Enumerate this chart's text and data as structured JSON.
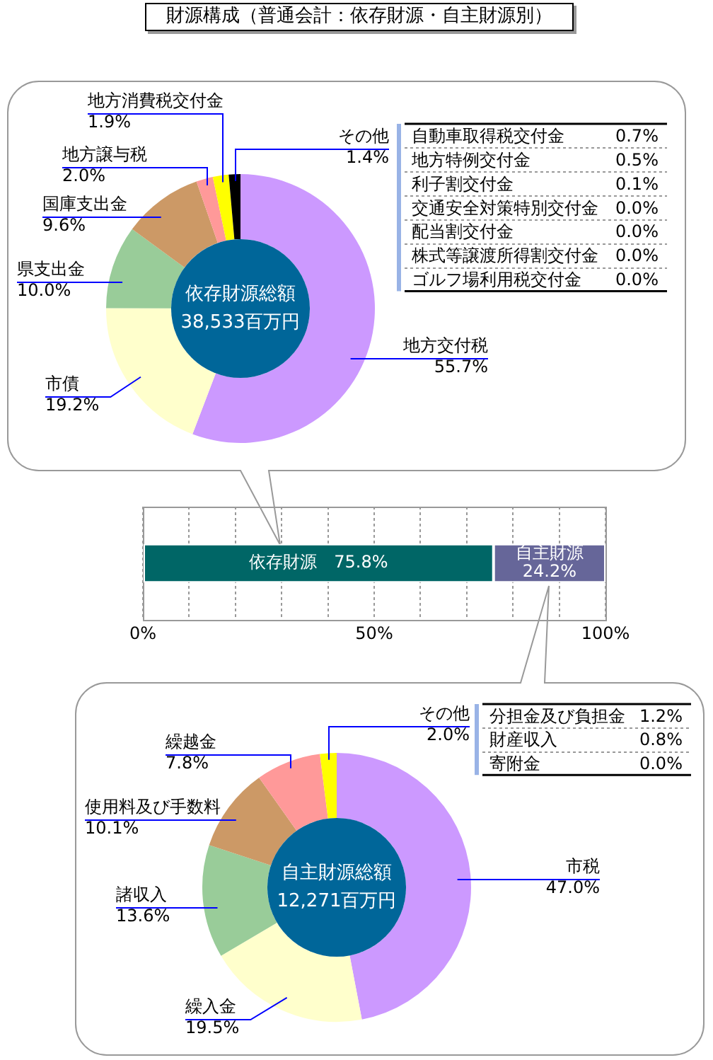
{
  "chart_data": [
    {
      "type": "donut",
      "title": "財源構成（普通会計：依存財源・自主財源別）",
      "categories": [
        "地方交付税",
        "市債",
        "県支出金",
        "国庫支出金",
        "地方譲与税",
        "地方消費税交付金",
        "その他"
      ],
      "values": [
        55.7,
        19.2,
        10.0,
        9.6,
        2.0,
        1.9,
        1.4
      ],
      "colors": [
        "#cc99ff",
        "#ffffcc",
        "#99cc99",
        "#cc9966",
        "#ff9999",
        "#ffff00",
        "#000000"
      ],
      "value_labels": [
        "55.7%",
        "19.2%",
        "10.0%",
        "9.6%",
        "2.0%",
        "1.9%",
        "1.4%"
      ],
      "annotations": [
        "依存財源総額",
        "38,533百万円",
        "自動車取得税交付金",
        "0.7%",
        "地方特例交付金",
        "0.5%",
        "利子割交付金",
        "0.1%",
        "交通安全対策特別交付金",
        "0.0%",
        "配当割交付金",
        "0.0%",
        "株式等譲渡所得割交付金",
        "0.0%",
        "ゴルフ場利用税交付金",
        "0.0%"
      ]
    },
    {
      "type": "bar",
      "orientation": "horizontal",
      "stacked": true,
      "categories": [
        null
      ],
      "series": [
        {
          "name": "依存財源",
          "color": "#006666",
          "values": [
            75.8
          ],
          "value_labels": [
            "75.8%"
          ]
        },
        {
          "name": "自主財源",
          "color": "#666699",
          "values": [
            24.2
          ],
          "value_labels": [
            "24.2%"
          ]
        }
      ],
      "xlim": [
        0,
        100
      ],
      "xticks": [
        {
          "value": 0,
          "label": "0%"
        },
        {
          "value": 10,
          "label": null
        },
        {
          "value": 20,
          "label": null
        },
        {
          "value": 30,
          "label": null
        },
        {
          "value": 40,
          "label": null
        },
        {
          "value": 50,
          "label": "50%"
        },
        {
          "value": 60,
          "label": null
        },
        {
          "value": 70,
          "label": null
        },
        {
          "value": 80,
          "label": null
        },
        {
          "value": 90,
          "label": null
        },
        {
          "value": 100,
          "label": "100%"
        }
      ],
      "grid": "x",
      "tick_labels": "x"
    },
    {
      "type": "donut",
      "categories": [
        "市税",
        "繰入金",
        "諸収入",
        "使用料及び手数料",
        "繰越金",
        "その他"
      ],
      "values": [
        47.0,
        19.5,
        13.6,
        10.1,
        7.8,
        2.0
      ],
      "colors": [
        "#cc99ff",
        "#ffffcc",
        "#99cc99",
        "#cc9966",
        "#ff9999",
        "#ffff00"
      ],
      "value_labels": [
        "47.0%",
        "19.5%",
        "13.6%",
        "10.1%",
        "7.8%",
        "2.0%"
      ],
      "annotations": [
        "自主財源総額",
        "12,271百万円",
        "分担金及び負担金",
        "1.2%",
        "財産収入",
        "0.8%",
        "寄附金",
        "0.0%"
      ]
    }
  ]
}
